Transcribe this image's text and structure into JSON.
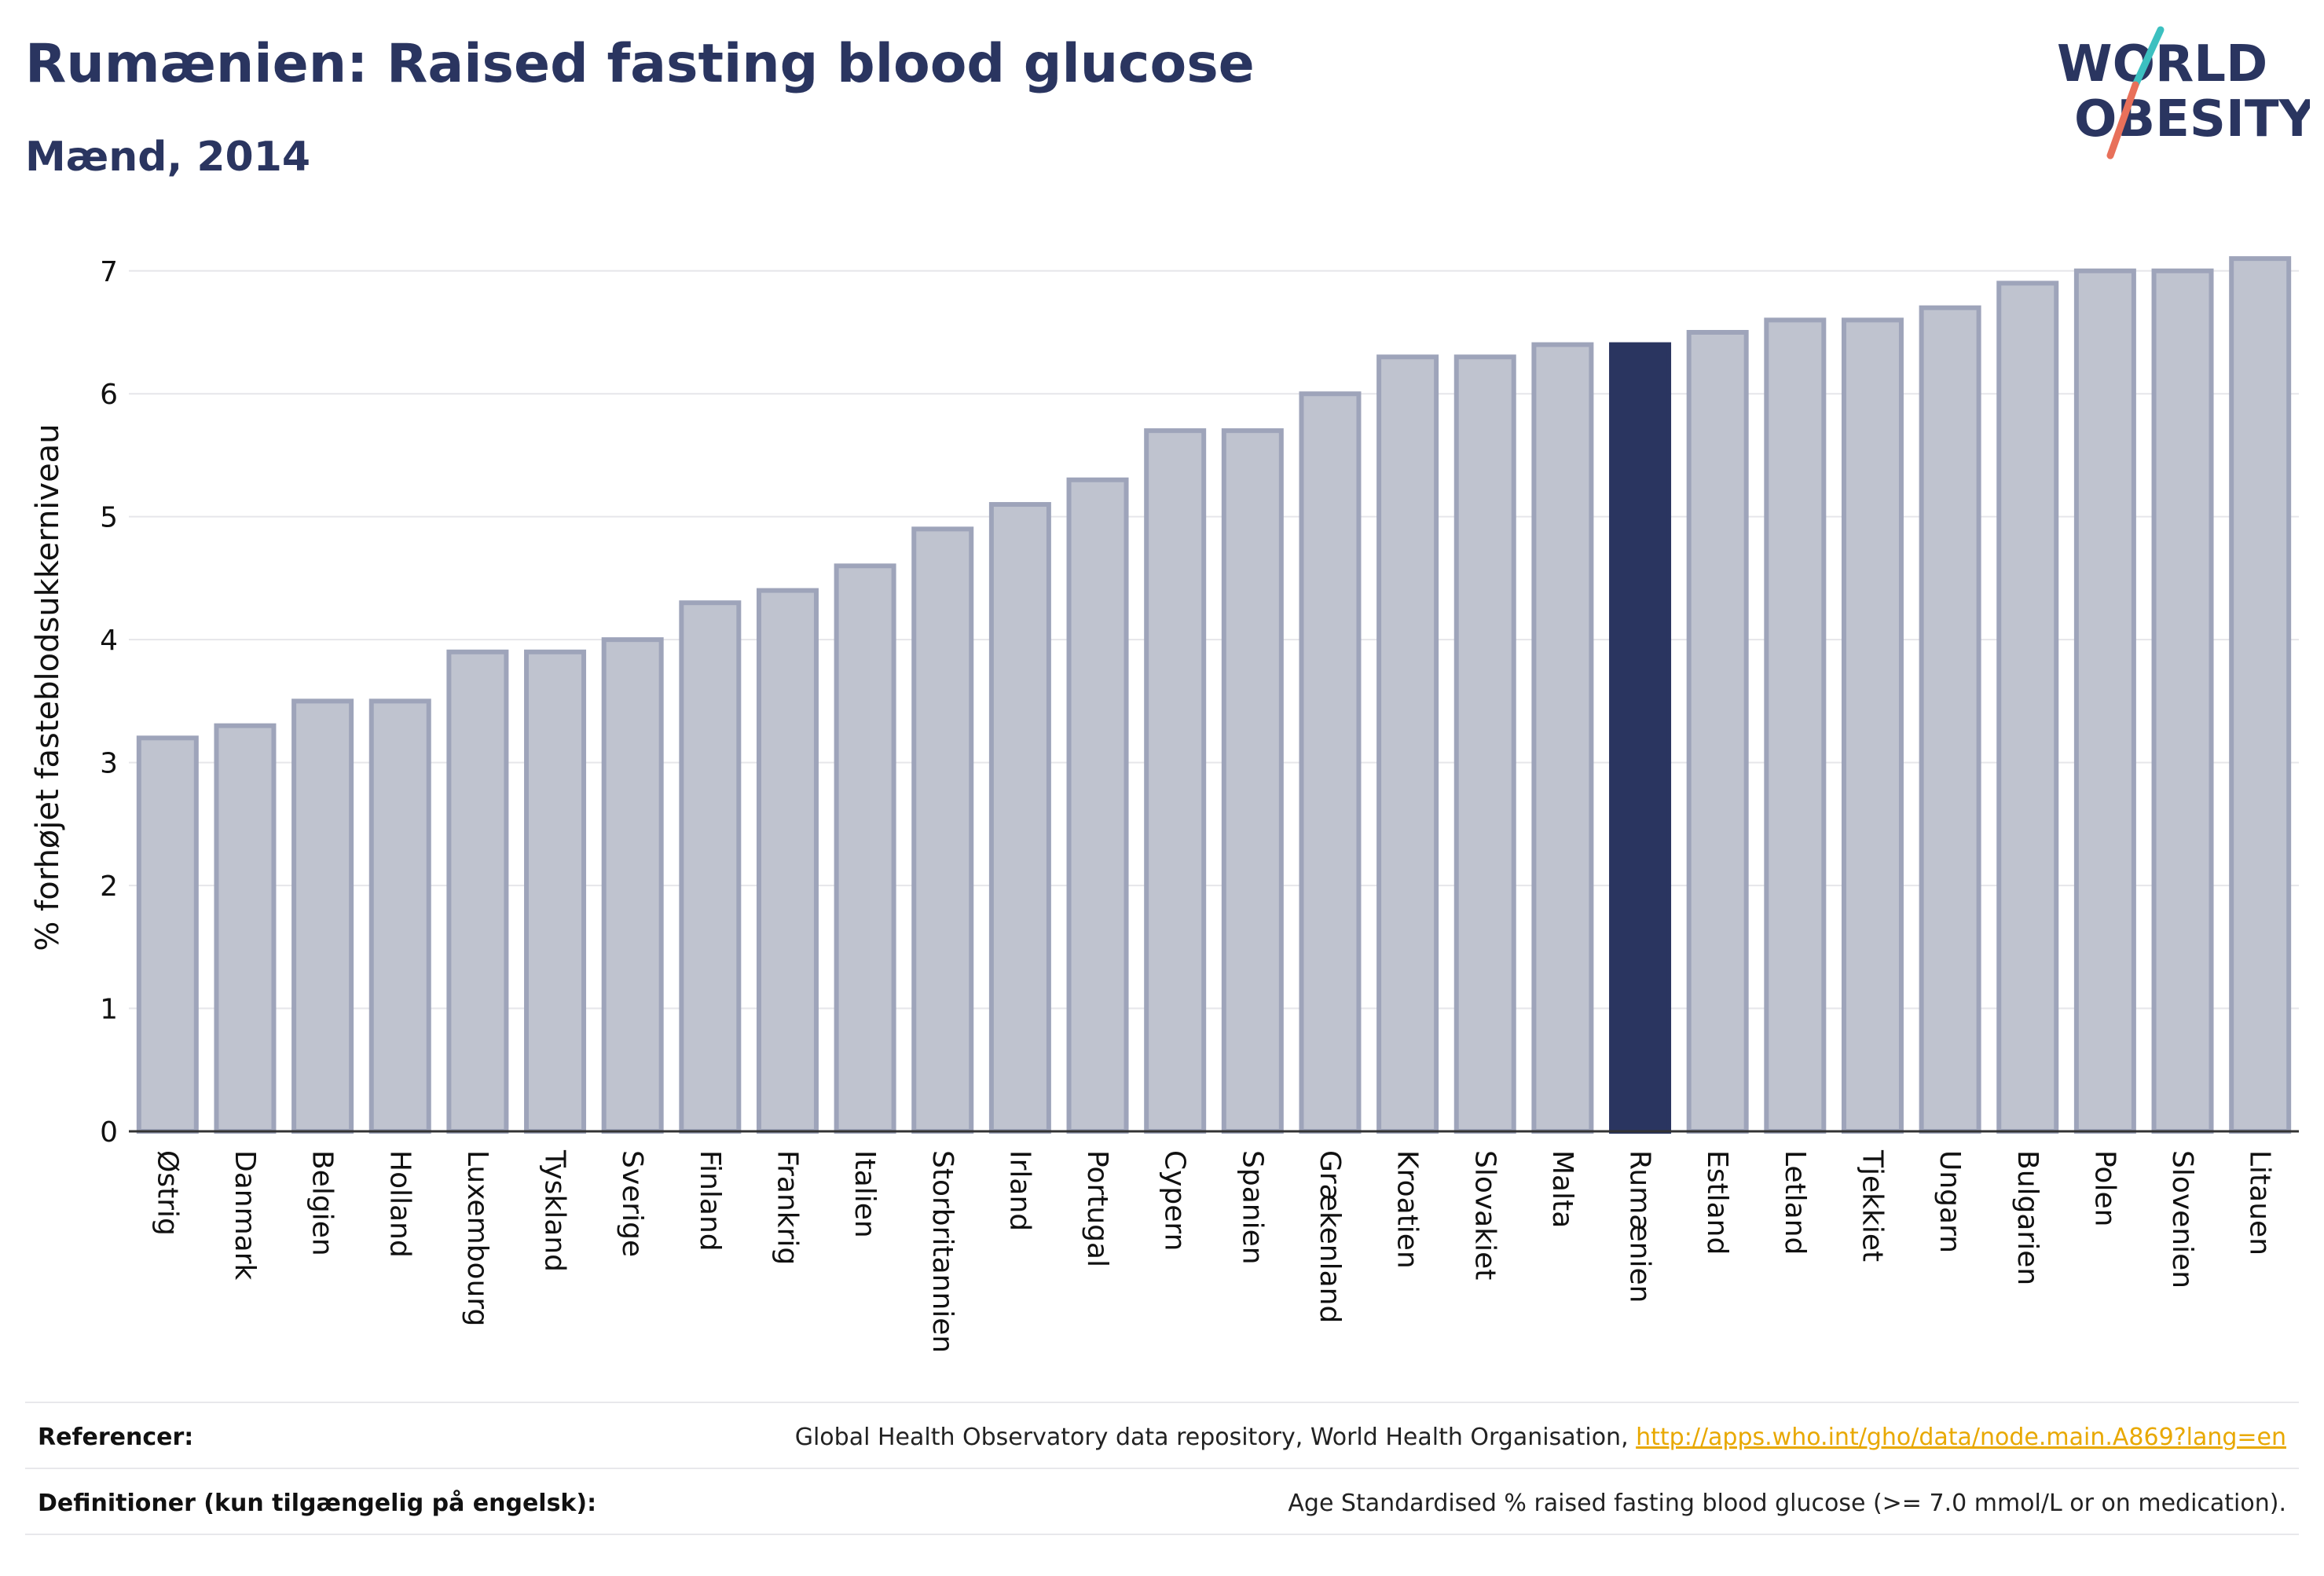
{
  "header": {
    "title": "Rumænien: Raised fasting blood glucose",
    "subtitle": "Mænd, 2014"
  },
  "logo": {
    "line1": "WORLD",
    "line2": "OBESITY",
    "colors": {
      "text": "#2a3560",
      "slash_teal": "#3cc0c0",
      "slash_coral": "#e8705a"
    }
  },
  "chart_data": {
    "type": "bar",
    "ylabel": "% forhøjet fasteblodsukkerniveau",
    "xlabel": "",
    "ylim": [
      0,
      7.35
    ],
    "yticks": [
      0,
      1,
      2,
      3,
      4,
      5,
      6,
      7
    ],
    "grid": true,
    "highlight": "Rumænien",
    "colors": {
      "bar": "#bfc3cf",
      "bar_border": "#9ea4ba",
      "highlight": "#2a3560"
    },
    "categories": [
      "Østrig",
      "Danmark",
      "Belgien",
      "Holland",
      "Luxembourg",
      "Tyskland",
      "Sverige",
      "Finland",
      "Frankrig",
      "Italien",
      "Storbritannien",
      "Irland",
      "Portugal",
      "Cypern",
      "Spanien",
      "Grækenland",
      "Kroatien",
      "Slovakiet",
      "Malta",
      "Rumænien",
      "Estland",
      "Letland",
      "Tjekkiet",
      "Ungarn",
      "Bulgarien",
      "Polen",
      "Slovenien",
      "Litauen"
    ],
    "values": [
      3.2,
      3.3,
      3.5,
      3.5,
      3.9,
      3.9,
      4.0,
      4.3,
      4.4,
      4.6,
      4.9,
      5.1,
      5.3,
      5.7,
      5.7,
      6.0,
      6.3,
      6.3,
      6.4,
      6.4,
      6.5,
      6.6,
      6.6,
      6.7,
      6.9,
      7.0,
      7.0,
      7.1
    ]
  },
  "footer": {
    "references_label": "Referencer:",
    "references_text": "Global Health Observatory data repository, World Health Organisation, ",
    "references_link": "http://apps.who.int/gho/data/node.main.A869?lang=en",
    "definitions_label": "Definitioner (kun tilgængelig på engelsk):",
    "definitions_text": "Age Standardised % raised fasting blood glucose (>= 7.0 mmol/L or on medication)."
  }
}
